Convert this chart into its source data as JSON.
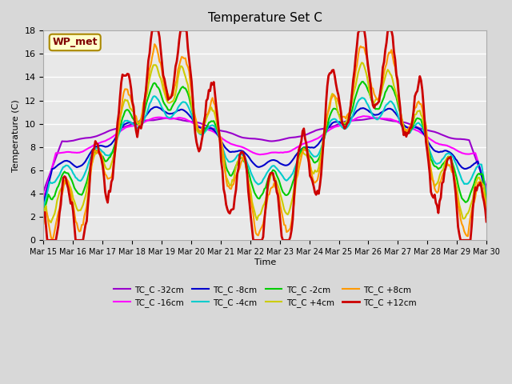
{
  "title": "Temperature Set C",
  "xlabel": "Time",
  "ylabel": "Temperature (C)",
  "ylim": [
    0,
    18
  ],
  "background_color": "#e8e8e8",
  "grid_color": "#ffffff",
  "legend_label": "WP_met",
  "xtick_labels": [
    "Mar 15",
    "Mar 16",
    "Mar 17",
    "Mar 18",
    "Mar 19",
    "Mar 20",
    "Mar 21",
    "Mar 22",
    "Mar 23",
    "Mar 24",
    "Mar 25",
    "Mar 26",
    "Mar 27",
    "Mar 28",
    "Mar 29",
    "Mar 30"
  ],
  "n_points": 360,
  "series_colors": {
    "TC_C -32cm": "#9900cc",
    "TC_C -16cm": "#ff00ff",
    "TC_C -8cm": "#0000cc",
    "TC_C -4cm": "#00cccc",
    "TC_C -2cm": "#00cc00",
    "TC_C +4cm": "#cccc00",
    "TC_C +8cm": "#ff9900",
    "TC_C +12cm": "#cc0000"
  }
}
